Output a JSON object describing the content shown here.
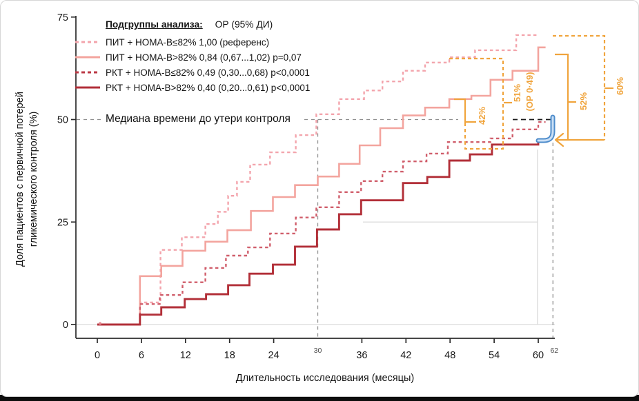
{
  "chart_data": {
    "type": "line",
    "subtype": "kaplan-meier-step-curves",
    "title": "",
    "xlabel": "Длительность исследования (месяцы)",
    "ylabel_line1": "Доля пациентов с первичной потерей",
    "ylabel_line2": "гликемического контроля (%)",
    "xlim": [
      0,
      62
    ],
    "ylim": [
      0,
      75
    ],
    "x_ticks": [
      0,
      6,
      12,
      18,
      24,
      36,
      42,
      48,
      54,
      60
    ],
    "x_ticks_minor": [
      30,
      62
    ],
    "y_ticks": [
      0,
      25,
      50,
      75
    ],
    "grid": "off (only reference lines at 0%, partial 25% line and x=60 vertical)",
    "legend_position": "top-left-inside",
    "legend_header": {
      "title": "Подгруппы анализа:",
      "value": "ОР (95% ДИ)"
    },
    "series": [
      {
        "label": "ПИТ + HOMA-B≤82% 1,00 (референс)",
        "hr": "1,00 (референс)",
        "style": "dashed",
        "color": "#F3A4AC",
        "end": 59.8,
        "points": [
          [
            0,
            0
          ],
          [
            5.8,
            5.4
          ],
          [
            8.6,
            18.2
          ],
          [
            11.5,
            21.3
          ],
          [
            14.7,
            24.5
          ],
          [
            16.4,
            27.5
          ],
          [
            17.8,
            31.4
          ],
          [
            19,
            34.8
          ],
          [
            20.8,
            39
          ],
          [
            23.5,
            42
          ],
          [
            27,
            46.2
          ],
          [
            29.8,
            51.3
          ],
          [
            32.9,
            55
          ],
          [
            36.3,
            57.1
          ],
          [
            38.8,
            59.3
          ],
          [
            41.6,
            61.9
          ],
          [
            44.6,
            63.9
          ],
          [
            47.9,
            65.2
          ],
          [
            51.4,
            66.9
          ],
          [
            57,
            70.6
          ]
        ]
      },
      {
        "label": "ПИТ + HOMA-B>82% 0,84 (0,67...1,02) p=0,07",
        "hr": "0,84 (0,67...1,02) p=0,07",
        "style": "solid",
        "color": "#F3A49E",
        "end": 61,
        "points": [
          [
            0,
            0
          ],
          [
            5.8,
            11.8
          ],
          [
            8.7,
            14.3
          ],
          [
            11.6,
            18
          ],
          [
            14.7,
            20.2
          ],
          [
            17.7,
            23
          ],
          [
            20.9,
            27.7
          ],
          [
            23.9,
            31.1
          ],
          [
            26.9,
            34
          ],
          [
            30,
            36.1
          ],
          [
            32.9,
            39.2
          ],
          [
            35.7,
            43.7
          ],
          [
            38.5,
            47.9
          ],
          [
            41.6,
            51
          ],
          [
            44.6,
            52.9
          ],
          [
            47.9,
            55
          ],
          [
            50.9,
            55.8
          ],
          [
            53.5,
            59.7
          ],
          [
            56.5,
            61.9
          ],
          [
            60,
            67.6
          ]
        ]
      },
      {
        "label": "РКТ + HOMA-B≤82% 0,49 (0,30...0,68) p<0,0001",
        "hr": "0,49 (0,30...0,68) p<0,0001",
        "style": "dashed",
        "color": "#D05E6B",
        "end": 61,
        "points": [
          [
            0,
            0
          ],
          [
            5.8,
            5
          ],
          [
            8.5,
            7.2
          ],
          [
            11.6,
            10.3
          ],
          [
            14.7,
            13.8
          ],
          [
            17.5,
            16.8
          ],
          [
            20.5,
            18.8
          ],
          [
            23.5,
            22.2
          ],
          [
            27,
            26.1
          ],
          [
            29.8,
            28.6
          ],
          [
            32.9,
            32.3
          ],
          [
            35.9,
            35
          ],
          [
            38.8,
            37.3
          ],
          [
            41.6,
            39.8
          ],
          [
            44.8,
            41.7
          ],
          [
            47.7,
            44.5
          ],
          [
            53.5,
            45.4
          ],
          [
            56.5,
            47.6
          ],
          [
            60,
            49.4
          ]
        ]
      },
      {
        "label": "РКТ + HOMA-B>82% 0,40 (0,20...0,61) p<0,0001",
        "hr": "0,40 (0,20...0,61) p<0,0001",
        "style": "solid",
        "color": "#B22F38",
        "end": 61,
        "points": [
          [
            0,
            0
          ],
          [
            5.8,
            2.4
          ],
          [
            8.7,
            4.2
          ],
          [
            11.9,
            6.2
          ],
          [
            14.8,
            7.4
          ],
          [
            17.8,
            9.6
          ],
          [
            20.7,
            12.4
          ],
          [
            23.9,
            14.6
          ],
          [
            26.9,
            19
          ],
          [
            29.9,
            23.2
          ],
          [
            32.9,
            26.9
          ],
          [
            35.9,
            30.3
          ],
          [
            41.6,
            34.5
          ],
          [
            44.9,
            36
          ],
          [
            47.9,
            40
          ],
          [
            50.7,
            41.5
          ],
          [
            53.7,
            43.9
          ],
          [
            60,
            45.2
          ]
        ]
      }
    ],
    "annotations": {
      "median_label": "Медиана времени до утери контроля",
      "median_value_pct": 50,
      "median_cross_month": 30,
      "last_month_label": 62,
      "pct_42": "42%",
      "pct_51": "51%",
      "pct_51_sub": "(ОР 0·49)",
      "pct_52": "52%",
      "pct_60": "60%"
    },
    "colors": {
      "orange": "#F0A43C",
      "blue_arrow": "#4E8CCB",
      "blue_arrow_core": "#CBE0F6",
      "gray_dash": "#8f8f8f",
      "black_dash": "#1a1a1a",
      "light_grid": "#d9d9d9",
      "axis": "#2b2b2b"
    }
  }
}
